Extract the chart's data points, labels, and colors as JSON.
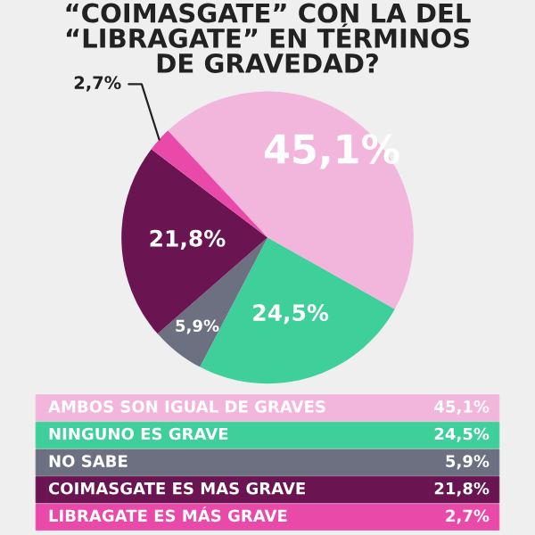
{
  "chart_data": {
    "type": "pie",
    "title": "“COIMASGATE” CON LA DEL\n“LIBRAGATE” EN TÉRMINOS\nDE GRAVEDAD?",
    "categories": [
      "AMBOS SON IGUAL DE GRAVES",
      "NINGUNO ES GRAVE",
      "NO SABE",
      "COIMASGATE ES MAS GRAVE",
      "LIBRAGATE ES MÁS GRAVE"
    ],
    "values": [
      45.1,
      24.5,
      5.9,
      21.8,
      2.7
    ],
    "value_labels": [
      "45,1%",
      "24,5%",
      "5,9%",
      "21,8%",
      "2,7%"
    ],
    "colors": [
      "#f2b6dc",
      "#3ecf9b",
      "#6c7080",
      "#6b1452",
      "#e94aaa"
    ],
    "legend": "bottom"
  }
}
